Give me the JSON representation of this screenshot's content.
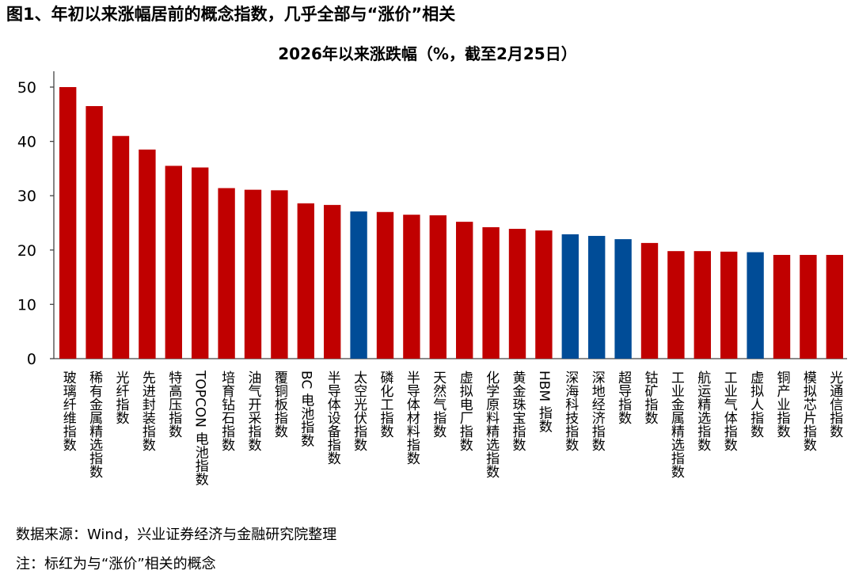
{
  "figure_title": "图1、年初以来涨幅居前的概念指数，几乎全部与“涨价”相关",
  "source": "数据来源：Wind，兴业证券经济与金融研究院整理",
  "note": "注：标红为与“涨价”相关的概念",
  "colors": {
    "price_related": "#C00000",
    "other": "#004C97"
  },
  "chart_data": {
    "type": "bar",
    "title": "2026年以来涨跌幅（%，截至2月25日）",
    "xlabel": "",
    "ylabel": "",
    "ylim": [
      0,
      50
    ],
    "yticks": [
      0,
      10,
      20,
      30,
      40,
      50
    ],
    "grid": false,
    "legend": "none",
    "categories": [
      "玻璃纤维指数",
      "稀有金属精选指数",
      "光纤指数",
      "先进封装指数",
      "特高压指数",
      "TOPCON 电池指数",
      "培育钻石指数",
      "油气开采指数",
      "覆铜板指数",
      "BC 电池指数",
      "半导体设备指数",
      "太空光伏指数",
      "磷化工指数",
      "半导体材料指数",
      "天然气指数",
      "虚拟电厂指数",
      "化学原料精选指数",
      "黄金珠宝指数",
      "HBM 指数",
      "深海科技指数",
      "深地经济指数",
      "超导指数",
      "钴矿指数",
      "工业金属精选指数",
      "航运精选指数",
      "工业气体指数",
      "虚拟人指数",
      "铜产业指数",
      "模拟芯片指数",
      "光通信指数"
    ],
    "values": [
      50.0,
      46.5,
      41.0,
      38.5,
      35.5,
      35.2,
      31.4,
      31.1,
      31.0,
      28.6,
      28.3,
      27.1,
      27.0,
      26.5,
      26.4,
      25.2,
      24.2,
      23.9,
      23.6,
      22.9,
      22.6,
      22.0,
      21.3,
      19.8,
      19.8,
      19.7,
      19.6,
      19.1,
      19.1,
      19.1
    ],
    "price_related": [
      true,
      true,
      true,
      true,
      true,
      true,
      true,
      true,
      true,
      true,
      true,
      false,
      true,
      true,
      true,
      true,
      true,
      true,
      true,
      false,
      false,
      false,
      true,
      true,
      true,
      true,
      false,
      true,
      true,
      true
    ]
  }
}
